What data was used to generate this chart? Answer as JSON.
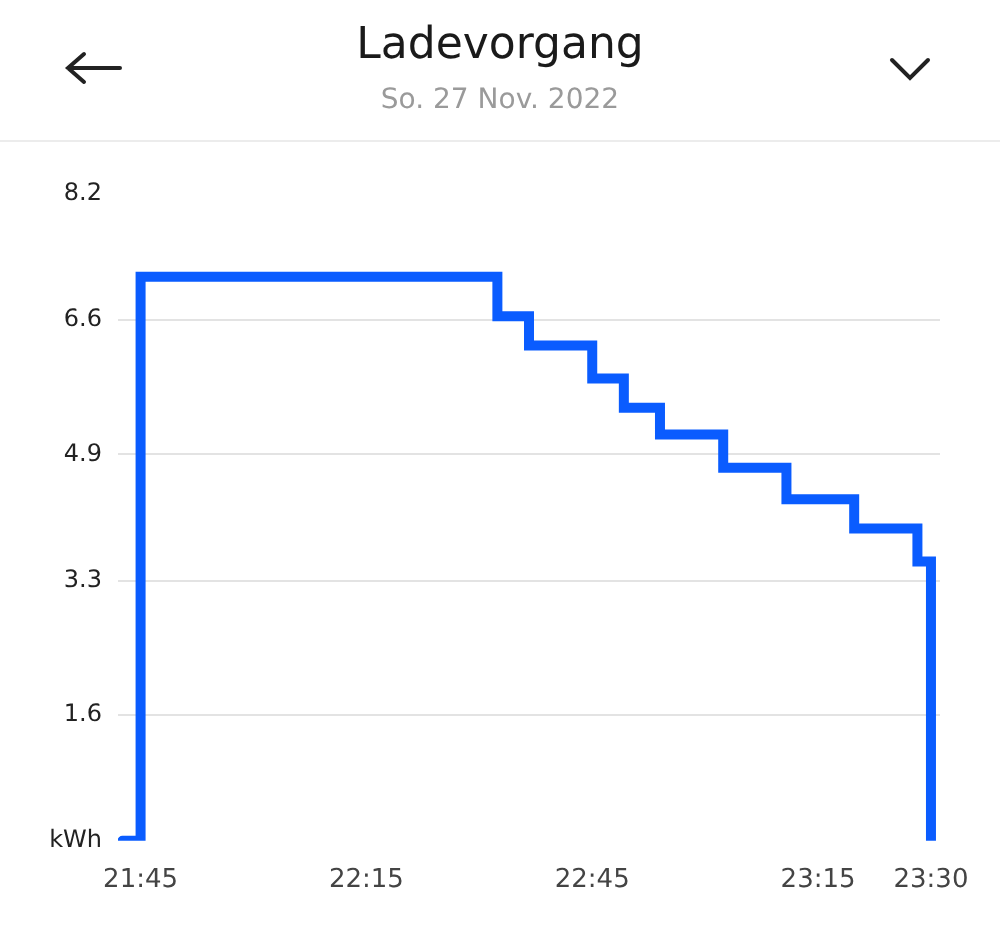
{
  "chart_data": {
    "type": "step",
    "title": "Ladevorgang",
    "subtitle": "So. 27 Nov. 2022",
    "x": [
      21.71,
      21.75,
      22.54,
      22.61,
      22.75,
      22.82,
      22.9,
      23.04,
      23.18,
      23.33,
      23.47,
      23.5
    ],
    "series": [
      {
        "color": "#0a5cff",
        "values": [
          0,
          7.15,
          6.65,
          6.28,
          5.86,
          5.49,
          5.15,
          4.73,
          4.33,
          3.96,
          3.54,
          0
        ]
      }
    ],
    "xlim": [
      21.7,
      23.52
    ],
    "xticks": [
      {
        "value": 21.75,
        "label": "21:45"
      },
      {
        "value": 22.25,
        "label": "22:15"
      },
      {
        "value": 22.75,
        "label": "22:45"
      },
      {
        "value": 23.25,
        "label": "23:15"
      },
      {
        "value": 23.5,
        "label": "23:30"
      }
    ],
    "ylim": [
      0,
      8.2
    ],
    "yticks": [
      {
        "value": 0,
        "label": "kWh"
      },
      1.6,
      3.3,
      4.9,
      6.6,
      8.2
    ],
    "grid": "y",
    "legend": false,
    "marker": "none",
    "line_style": "solid"
  }
}
